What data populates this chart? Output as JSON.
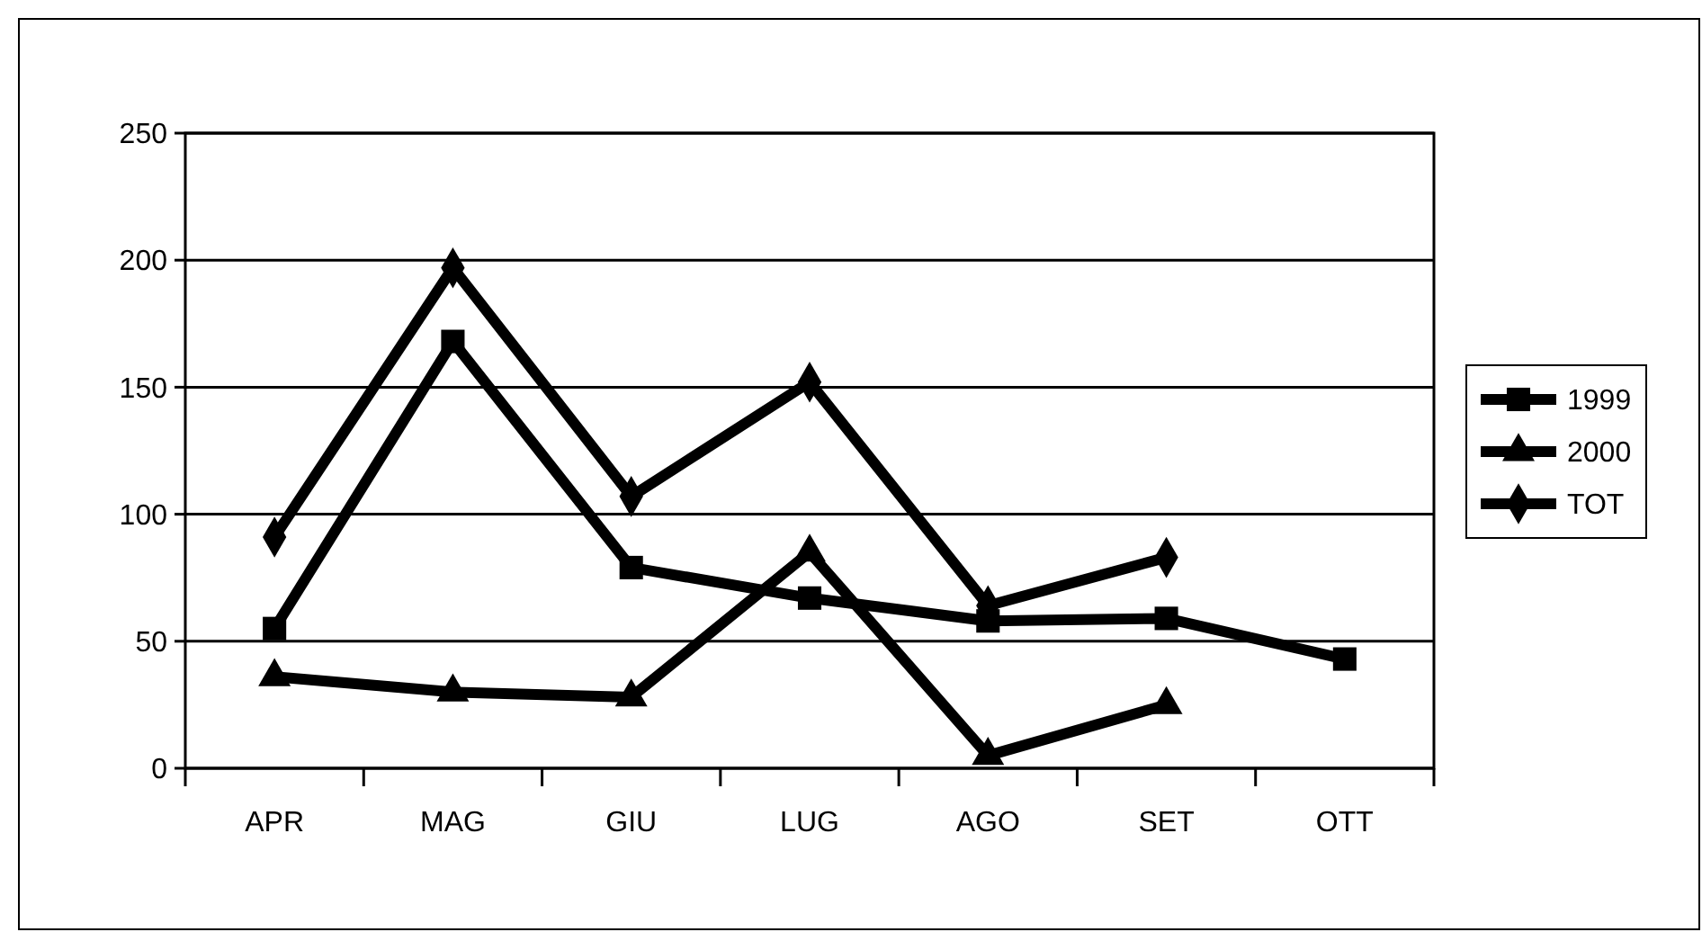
{
  "chart_data": {
    "type": "line",
    "categories": [
      "APR",
      "MAG",
      "GIU",
      "LUG",
      "AGO",
      "SET",
      "OTT"
    ],
    "series": [
      {
        "name": "1999",
        "color": "#000000",
        "marker": "square",
        "values": [
          55,
          168,
          79,
          67,
          58,
          59,
          43
        ]
      },
      {
        "name": "2000",
        "color": "#000000",
        "marker": "triangle",
        "values": [
          36,
          30,
          28,
          85,
          5,
          25,
          null
        ]
      },
      {
        "name": "TOT",
        "color": "#000000",
        "marker": "diamond",
        "values": [
          91,
          197,
          107,
          152,
          64,
          83,
          null
        ]
      }
    ],
    "ylim": [
      0,
      250
    ],
    "yticks": [
      0,
      50,
      100,
      150,
      200,
      250
    ],
    "grid": "y",
    "legend": "right"
  }
}
